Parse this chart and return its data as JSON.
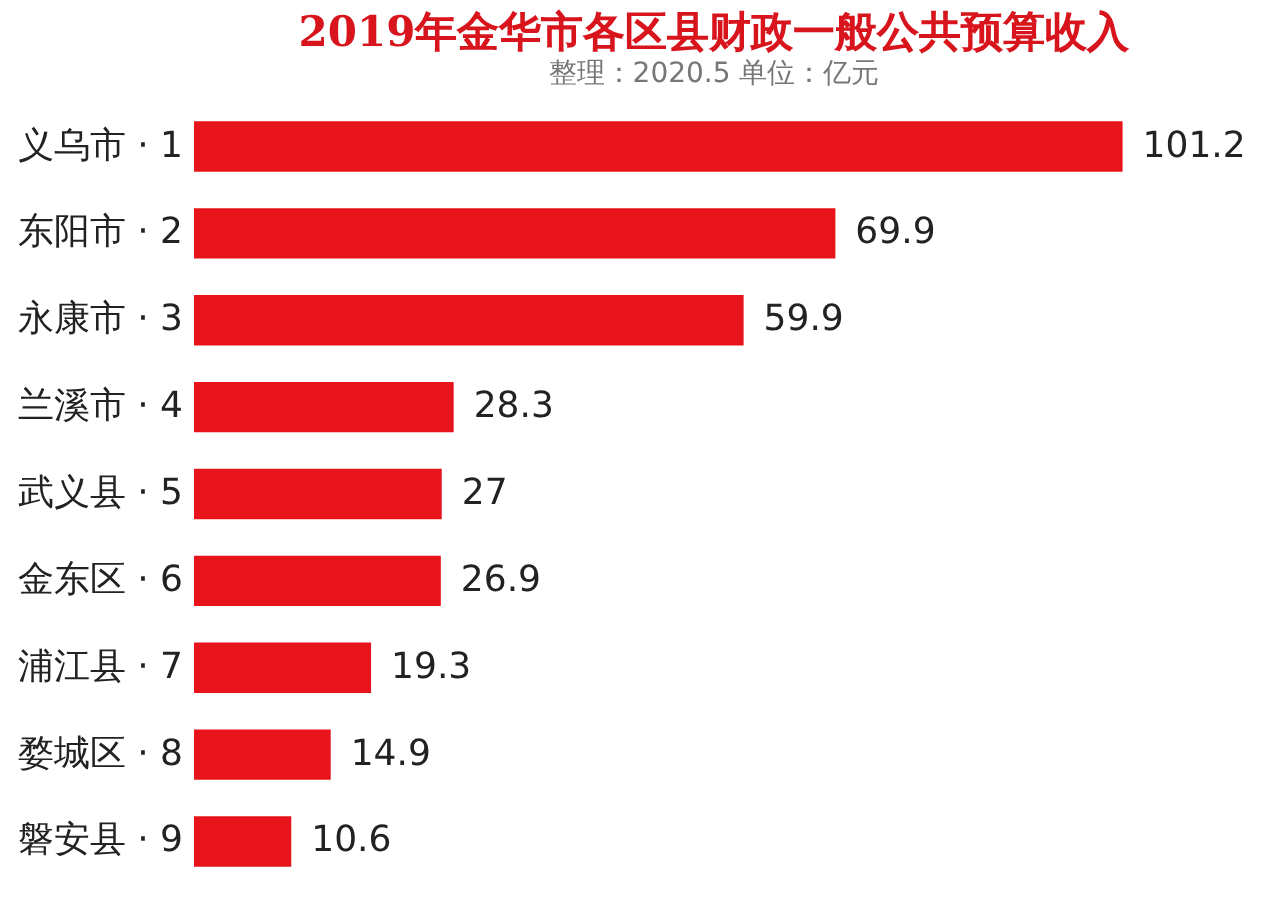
{
  "chart_data": {
    "type": "bar",
    "orientation": "horizontal",
    "title": "2019年金华市各区县财政一般公共预算收入",
    "subtitle": "整理：2020.5   单位：亿元",
    "categories": [
      "义乌市 · 1",
      "东阳市 · 2",
      "永康市 · 3",
      "兰溪市 · 4",
      "武义县 · 5",
      "金东区 · 6",
      "浦江县 · 7",
      "婺城区 · 8",
      "磐安县 · 9"
    ],
    "values": [
      101.2,
      69.9,
      59.9,
      28.3,
      27,
      26.9,
      19.3,
      14.9,
      10.6
    ],
    "color": "#e8141c",
    "data_labels": true
  }
}
